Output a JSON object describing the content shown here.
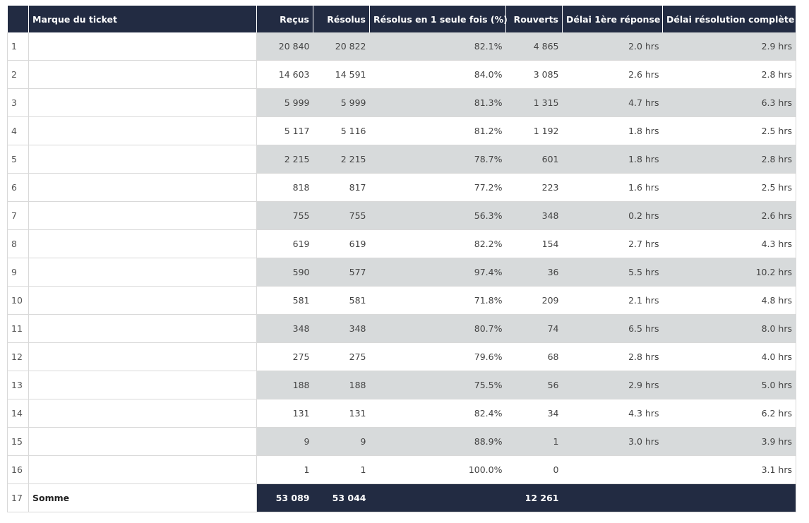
{
  "columns": [
    "",
    "Marque du ticket",
    "Reçus",
    "Résolus",
    "Résolus en 1 seule fois (%)",
    "Rouverts",
    "Délai 1ère réponse",
    "Délai résolution complète"
  ],
  "rows": [
    [
      "1",
      "",
      "20 840",
      "20 822",
      "82.1%",
      "4 865",
      "2.0 hrs",
      "2.9 hrs"
    ],
    [
      "2",
      "",
      "14 603",
      "14 591",
      "84.0%",
      "3 085",
      "2.6 hrs",
      "2.8 hrs"
    ],
    [
      "3",
      "",
      "5 999",
      "5 999",
      "81.3%",
      "1 315",
      "4.7 hrs",
      "6.3 hrs"
    ],
    [
      "4",
      "",
      "5 117",
      "5 116",
      "81.2%",
      "1 192",
      "1.8 hrs",
      "2.5 hrs"
    ],
    [
      "5",
      "",
      "2 215",
      "2 215",
      "78.7%",
      "601",
      "1.8 hrs",
      "2.8 hrs"
    ],
    [
      "6",
      "",
      "818",
      "817",
      "77.2%",
      "223",
      "1.6 hrs",
      "2.5 hrs"
    ],
    [
      "7",
      "",
      "755",
      "755",
      "56.3%",
      "348",
      "0.2 hrs",
      "2.6 hrs"
    ],
    [
      "8",
      "",
      "619",
      "619",
      "82.2%",
      "154",
      "2.7 hrs",
      "4.3 hrs"
    ],
    [
      "9",
      "",
      "590",
      "577",
      "97.4%",
      "36",
      "5.5 hrs",
      "10.2 hrs"
    ],
    [
      "10",
      "",
      "581",
      "581",
      "71.8%",
      "209",
      "2.1 hrs",
      "4.8 hrs"
    ],
    [
      "11",
      "",
      "348",
      "348",
      "80.7%",
      "74",
      "6.5 hrs",
      "8.0 hrs"
    ],
    [
      "12",
      "",
      "275",
      "275",
      "79.6%",
      "68",
      "2.8 hrs",
      "4.0 hrs"
    ],
    [
      "13",
      "",
      "188",
      "188",
      "75.5%",
      "56",
      "2.9 hrs",
      "5.0 hrs"
    ],
    [
      "14",
      "",
      "131",
      "131",
      "82.4%",
      "34",
      "4.3 hrs",
      "6.2 hrs"
    ],
    [
      "15",
      "",
      "9",
      "9",
      "88.9%",
      "1",
      "3.0 hrs",
      "3.9 hrs"
    ],
    [
      "16",
      "",
      "1",
      "1",
      "100.0%",
      "0",
      "",
      "3.1 hrs"
    ]
  ],
  "total": [
    "17",
    "Somme",
    "53 089",
    "53 044",
    "",
    "12 261",
    "",
    ""
  ],
  "colors": {
    "header": "#222b42",
    "stripe": "#d7dadb"
  }
}
